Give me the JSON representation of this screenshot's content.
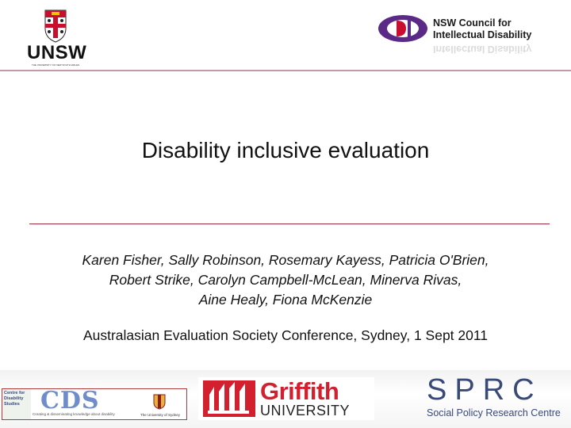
{
  "header": {
    "unsw": {
      "wordmark": "UNSW",
      "subtext": "THE UNIVERSITY OF NEW SOUTH WALES",
      "crest_icon": "unsw-crest-icon"
    },
    "cid": {
      "line1": "NSW Council for",
      "line2": "Intellectual Disability",
      "mark_icon": "cid-logo-mark-icon"
    }
  },
  "main": {
    "title": "Disability inclusive evaluation",
    "authors": [
      "Karen Fisher, Sally Robinson, Rosemary Kayess, Patricia O'Brien,",
      "Robert Strike, Carolyn Campbell-McLean, Minerva Rivas,",
      "Aine Healy, Fiona McKenzie"
    ],
    "conference": "Australasian Evaluation Society Conference, Sydney, 1 Sept 2011"
  },
  "footer": {
    "cds": {
      "side_text": "Centre for Disability Studies",
      "wordmark": "CDS",
      "tagline": "Creating & disseminating knowledge about disability",
      "sydney": "The University of Sydney"
    },
    "griffith": {
      "word": "Griffith",
      "university": "UNIVERSITY"
    },
    "sprc": {
      "word": "SPRC",
      "subtitle": "Social Policy Research Centre"
    }
  },
  "colors": {
    "accent_rule": "#9c2a3b",
    "header_rule": "#c49aa5",
    "cid_purple": "#5b2a86",
    "griffith_red": "#d2202f",
    "sprc_blue": "#3a4a78",
    "cds_blue": "#6f8ec9"
  }
}
